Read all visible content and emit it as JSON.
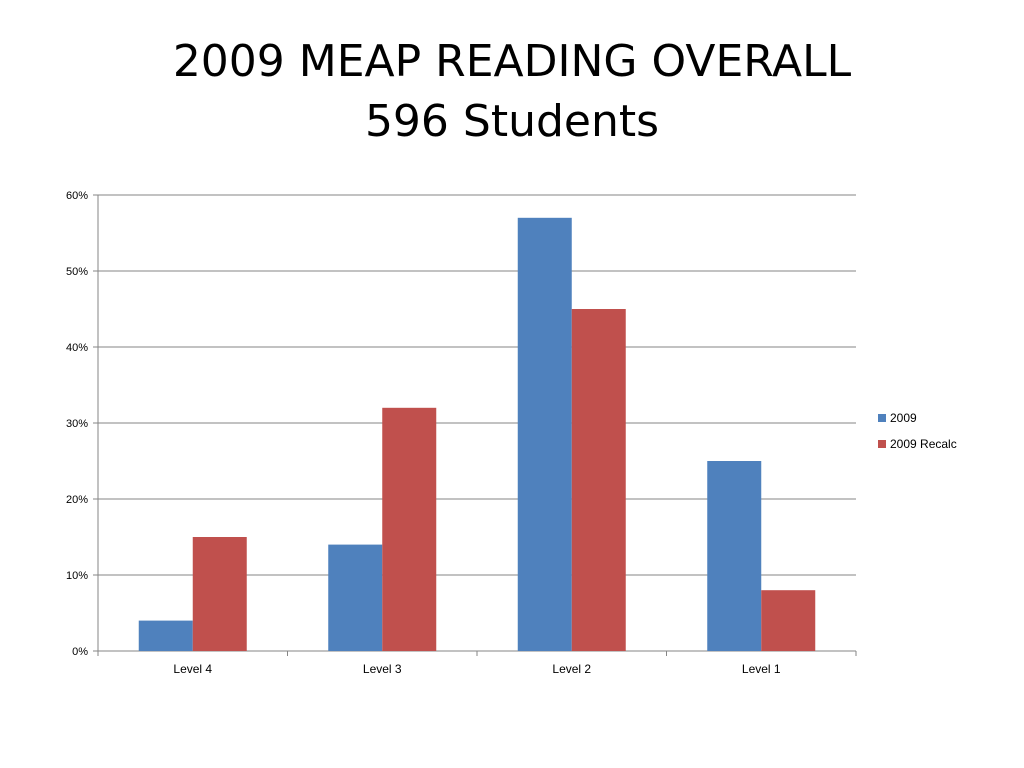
{
  "slide": {
    "title_line1": "2009 MEAP READING OVERALL",
    "title_line2": "596 Students"
  },
  "chart_data": {
    "type": "bar",
    "categories": [
      "Level 4",
      "Level 3",
      "Level 2",
      "Level 1"
    ],
    "series": [
      {
        "name": "2009",
        "values": [
          4,
          14,
          57,
          25
        ],
        "color": "#4F81BD"
      },
      {
        "name": "2009 Recalc",
        "values": [
          15,
          32,
          45,
          8
        ],
        "color": "#C0504D"
      }
    ],
    "ylim": [
      0,
      60
    ],
    "yticks": [
      0,
      10,
      20,
      30,
      40,
      50,
      60
    ],
    "ytick_format": "percent",
    "grid": true,
    "legend_position": "right",
    "xlabel": "",
    "ylabel": ""
  }
}
